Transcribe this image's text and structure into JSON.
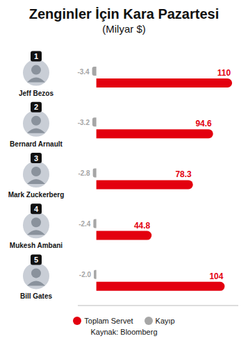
{
  "chart_data": {
    "type": "bar",
    "title": "Zenginler İçin Kara Pazartesi",
    "subtitle": "(Milyar $)",
    "source": "Kaynak: Bloomberg",
    "categories": [
      "Jeff Bezos",
      "Bernard Arnault",
      "Mark Zuckerberg",
      "Mukesh Ambani",
      "Bill Gates"
    ],
    "rank_labels": [
      "1",
      "2",
      "3",
      "4",
      "5"
    ],
    "series": [
      {
        "name": "Toplam Servet",
        "color": "#e3000f",
        "values": [
          110,
          94.6,
          78.3,
          44.8,
          104
        ]
      },
      {
        "name": "Kayıp",
        "color": "#a6a6a6",
        "values": [
          -3.4,
          -3.2,
          -2.8,
          -2.4,
          -2.0
        ],
        "value_labels": [
          "-3.4",
          "-3.2",
          "-2.8",
          "-2.4",
          "-2.0"
        ]
      }
    ],
    "xlim": [
      -15,
      115
    ],
    "orientation": "horizontal",
    "data_labels": true,
    "tick_labels": false,
    "grid": false,
    "legend": "bottom"
  }
}
